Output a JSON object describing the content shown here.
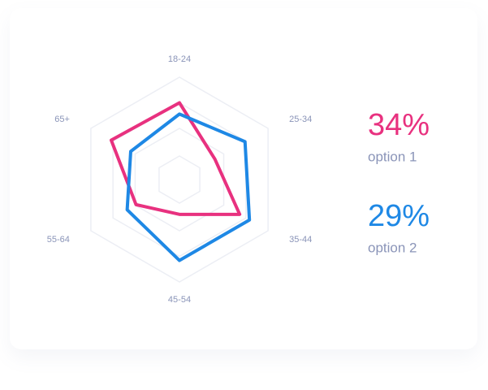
{
  "chart_data": {
    "type": "radar",
    "categories": [
      "18-24",
      "25-34",
      "35-44",
      "45-54",
      "55-64",
      "65+"
    ],
    "ylim": [
      0,
      100
    ],
    "grid": true,
    "series": [
      {
        "name": "option 1",
        "color": "#e8317f",
        "values": [
          75,
          40,
          68,
          34,
          49,
          77
        ]
      },
      {
        "name": "option 2",
        "color": "#1e88e5",
        "values": [
          64,
          74,
          79,
          79,
          59,
          55
        ]
      }
    ],
    "summary": {
      "values": [
        34,
        29
      ],
      "value_labels": [
        "34%",
        "29%"
      ]
    }
  }
}
